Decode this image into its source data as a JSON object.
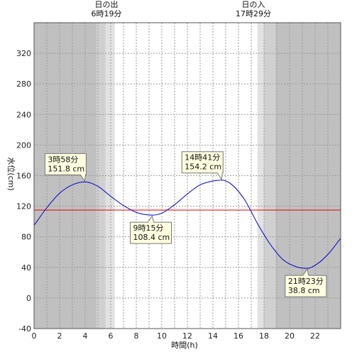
{
  "chart_data": {
    "type": "line",
    "xlabel": "時間(h)",
    "ylabel": "水位(cm)",
    "xlim": [
      0,
      24
    ],
    "ylim": [
      -40,
      360
    ],
    "x_ticks": [
      "0",
      "2",
      "4",
      "6",
      "8",
      "10",
      "12",
      "14",
      "16",
      "18",
      "20",
      "22"
    ],
    "y_ticks": [
      "-40",
      "0",
      "40",
      "80",
      "120",
      "160",
      "200",
      "240",
      "280",
      "320"
    ],
    "grid": true,
    "colors": {
      "tide_line": "#0000cc",
      "reference_line": "#e00000",
      "night": "#c0c0c0",
      "twilight_dark": "#d0d0d0",
      "twilight_light": "#e2e2e2",
      "day": "#ffffff"
    },
    "sunrise": {
      "label": "日の出",
      "time": "6時19分",
      "hour": 6.317
    },
    "sunset": {
      "label": "日の入",
      "time": "17時29分",
      "hour": 17.483
    },
    "twilight": {
      "morning": [
        [
          4.9,
          5.6
        ],
        [
          5.6,
          6.317
        ]
      ],
      "evening": [
        [
          17.483,
          18.0
        ],
        [
          18.0,
          18.9
        ]
      ]
    },
    "reference_level": 115,
    "extremes": [
      {
        "time": "3時58分",
        "level": "151.8 cm",
        "hour": 3.967,
        "value": 151.8,
        "kind": "high"
      },
      {
        "time": "9時15分",
        "level": "108.4 cm",
        "hour": 9.25,
        "value": 108.4,
        "kind": "low"
      },
      {
        "time": "14時41分",
        "level": "154.2 cm",
        "hour": 14.683,
        "value": 154.2,
        "kind": "high"
      },
      {
        "time": "21時23分",
        "level": "38.8 cm",
        "hour": 21.383,
        "value": 38.8,
        "kind": "low"
      }
    ],
    "series": [
      {
        "x": [
          0,
          1,
          2,
          3,
          3.967,
          5,
          6,
          7,
          8,
          9.25,
          10,
          11,
          12,
          13,
          14,
          14.683,
          15.5,
          16.5,
          17.5,
          18.5,
          19.5,
          20.5,
          21.383,
          22.2,
          23,
          24
        ],
        "y": [
          95,
          118,
          137,
          148,
          151.8,
          146,
          133,
          121,
          112,
          108.4,
          111,
          122,
          136,
          148,
          153,
          154.2,
          148,
          128,
          97,
          70,
          50,
          41,
          38.8,
          45,
          57,
          78
        ]
      }
    ]
  }
}
